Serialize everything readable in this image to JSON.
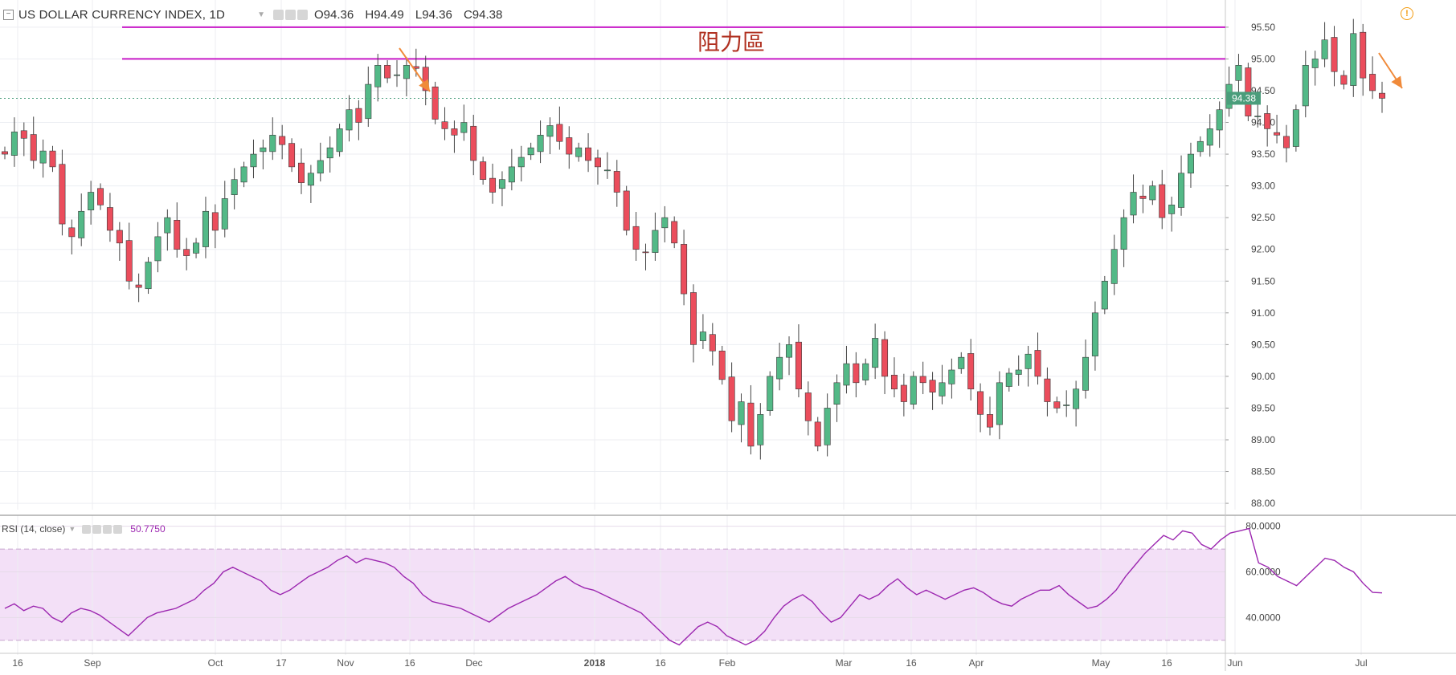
{
  "header": {
    "title": "US DOLLAR CURRENCY INDEX, 1D",
    "open": "O94.36",
    "high": "H94.49",
    "low": "L94.36",
    "close": "C94.38"
  },
  "rsi_header": {
    "label": "RSI (14, close)",
    "value": "50.7750"
  },
  "annotation": {
    "resistance_label": "阻力區"
  },
  "colors": {
    "up": "#53b987",
    "down": "#eb4d5c",
    "resistance": "#c71ac7",
    "arrow": "#f08a3a",
    "rsi_line": "#9c27b0",
    "rsi_band": "#f3e0f7",
    "last_price_tag": "#4a9d7b"
  },
  "chart_data": [
    {
      "type": "candlestick",
      "title": "US DOLLAR CURRENCY INDEX, 1D",
      "ylim": [
        87.9,
        95.65
      ],
      "y_ticks": [
        "95.50",
        "95.00",
        "94.50",
        "94.00",
        "93.50",
        "93.00",
        "92.50",
        "92.00",
        "91.50",
        "91.00",
        "90.50",
        "90.00",
        "89.50",
        "89.00",
        "88.50",
        "88.00"
      ],
      "last_price": "94.38",
      "x_tick_labels": [
        "16",
        "Sep",
        "Oct",
        "17",
        "Nov",
        "16",
        "Dec",
        "2018",
        "16",
        "Feb",
        "Mar",
        "16",
        "Apr",
        "May",
        "16",
        "Jun",
        "Jul"
      ],
      "resistance_levels": [
        95.5,
        95.0
      ],
      "close_series": [
        93.5,
        93.85,
        93.75,
        93.4,
        93.55,
        93.3,
        92.4,
        92.2,
        92.6,
        92.9,
        92.7,
        92.3,
        92.1,
        91.5,
        91.4,
        91.8,
        92.2,
        92.5,
        92.0,
        91.9,
        92.1,
        92.6,
        92.3,
        92.8,
        93.1,
        93.3,
        93.5,
        93.6,
        93.8,
        93.65,
        93.3,
        93.05,
        93.2,
        93.4,
        93.6,
        93.9,
        94.2,
        94.0,
        94.6,
        94.9,
        94.7,
        94.75,
        94.9,
        94.85,
        94.5,
        94.05,
        93.9,
        93.8,
        94.0,
        93.4,
        93.1,
        92.9,
        93.1,
        93.3,
        93.45,
        93.6,
        93.8,
        93.95,
        93.7,
        93.5,
        93.6,
        93.4,
        93.3,
        93.25,
        92.9,
        92.3,
        92.0,
        91.95,
        92.3,
        92.5,
        92.1,
        91.3,
        90.5,
        90.7,
        90.4,
        89.95,
        89.3,
        89.6,
        88.9,
        89.4,
        90.0,
        90.3,
        90.5,
        89.8,
        89.3,
        88.9,
        89.5,
        89.9,
        90.2,
        89.9,
        90.2,
        90.6,
        90.0,
        89.8,
        89.6,
        90.0,
        89.9,
        89.75,
        89.9,
        90.1,
        90.3,
        89.8,
        89.4,
        89.2,
        89.9,
        90.05,
        90.1,
        90.35,
        90.0,
        89.6,
        89.5,
        89.55,
        89.8,
        90.3,
        91.0,
        91.5,
        92.0,
        92.5,
        92.9,
        92.8,
        93.0,
        92.5,
        92.7,
        93.2,
        93.5,
        93.7,
        93.9,
        94.2,
        94.6,
        94.9,
        94.1,
        94.1,
        93.9,
        93.8,
        93.6,
        94.2,
        94.9,
        95.0,
        95.3,
        94.8,
        94.6,
        95.4,
        94.7,
        94.5,
        94.38
      ],
      "annotations": [
        {
          "type": "arrow",
          "direction": "down-right",
          "near": "Nov 16"
        },
        {
          "type": "arrow",
          "direction": "down-right",
          "near": "Jul"
        },
        {
          "type": "text",
          "text": "阻力區"
        }
      ]
    },
    {
      "type": "line",
      "title": "RSI (14, close)",
      "ylim": [
        25,
        82
      ],
      "y_ticks": [
        "80.0000",
        "60.0000",
        "40.0000"
      ],
      "band": [
        30,
        70
      ],
      "current_value": "50.7750",
      "values": [
        44,
        46,
        43,
        45,
        44,
        40,
        38,
        42,
        44,
        43,
        41,
        38,
        35,
        32,
        36,
        40,
        42,
        43,
        44,
        46,
        48,
        52,
        55,
        60,
        62,
        60,
        58,
        56,
        52,
        50,
        52,
        55,
        58,
        60,
        62,
        65,
        67,
        64,
        66,
        65,
        64,
        62,
        58,
        55,
        50,
        47,
        46,
        45,
        44,
        42,
        40,
        38,
        41,
        44,
        46,
        48,
        50,
        53,
        56,
        58,
        55,
        53,
        52,
        50,
        48,
        46,
        44,
        42,
        38,
        34,
        30,
        28,
        32,
        36,
        38,
        36,
        32,
        30,
        28,
        30,
        34,
        40,
        45,
        48,
        50,
        47,
        42,
        38,
        40,
        45,
        50,
        48,
        50,
        54,
        57,
        53,
        50,
        52,
        50,
        48,
        50,
        52,
        53,
        51,
        48,
        46,
        45,
        48,
        50,
        52,
        52,
        54,
        50,
        47,
        44,
        45,
        48,
        52,
        58,
        63,
        68,
        72,
        76,
        74,
        78,
        77,
        72,
        70,
        74,
        77,
        78,
        79,
        64,
        62,
        58,
        56,
        54,
        58,
        62,
        66,
        65,
        62,
        60,
        55,
        51,
        50.775
      ],
      "ruler_lines": [
        70,
        30
      ]
    }
  ]
}
